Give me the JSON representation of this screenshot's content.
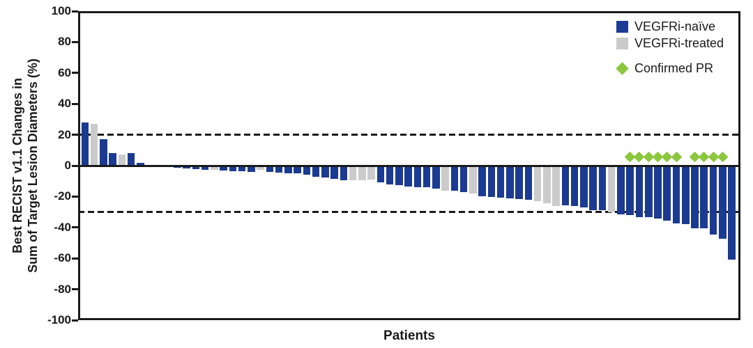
{
  "figure": {
    "y_axis_title_line1": "Best RECIST v1.1 Changes in",
    "y_axis_title_line2": "Sum of Target Lesion Diameters (%)",
    "x_axis_title": "Patients",
    "legend": [
      {
        "label": "VEGFRi-naïve",
        "swatch": "square",
        "color": "#1b3a91"
      },
      {
        "label": "VEGFRi-treated",
        "swatch": "square",
        "color": "#cbcbcb"
      },
      {
        "label": "Confirmed PR",
        "swatch": "diamond",
        "color": "#8cc63e"
      }
    ]
  },
  "chart_data": {
    "type": "bar",
    "subtype": "waterfall",
    "title": "",
    "xlabel": "Patients",
    "ylabel": "Best RECIST v1.1 Changes in Sum of Target Lesion Diameters (%)",
    "ylim": [
      -100,
      100
    ],
    "yticks": [
      100,
      80,
      60,
      40,
      20,
      0,
      -20,
      -40,
      -60,
      -80,
      -100
    ],
    "reference_lines": [
      20,
      -30
    ],
    "grid": false,
    "legend_position": "top-right-inside",
    "colors": {
      "naive": "#1b3a91",
      "treated": "#cbcbcb",
      "confirmed_pr": "#8cc63e",
      "axis": "#1a1a1a"
    },
    "pr_marker_value": 5.5,
    "values": [
      28,
      27,
      17,
      8,
      7,
      8,
      2,
      0,
      0,
      0,
      -0.5,
      -1,
      -1.5,
      -2,
      -2,
      -2.5,
      -3,
      -3,
      -3.5,
      -2,
      -3.5,
      -4,
      -4.5,
      -4.5,
      -5,
      -6.5,
      -7,
      -8,
      -9,
      -9,
      -9,
      -8.5,
      -10,
      -11.5,
      -12,
      -13,
      -13.5,
      -13.5,
      -14,
      -15.5,
      -15.5,
      -16.5,
      -17.5,
      -19,
      -19.5,
      -20,
      -20.5,
      -21,
      -21.5,
      -22.5,
      -23.5,
      -25.5,
      -25,
      -25.5,
      -26.5,
      -28,
      -28,
      -29.5,
      -31,
      -31.5,
      -32.5,
      -32.5,
      -33.5,
      -35,
      -36.5,
      -37,
      -40,
      -40,
      -44,
      -46.5,
      -60
    ],
    "group_default": "naive",
    "treated_indices": [
      2,
      5,
      15,
      20,
      30,
      31,
      32,
      40,
      43,
      50,
      51,
      52,
      58
    ],
    "pr_indices": [
      60,
      61,
      62,
      63,
      64,
      65,
      67,
      68,
      69,
      70
    ]
  }
}
